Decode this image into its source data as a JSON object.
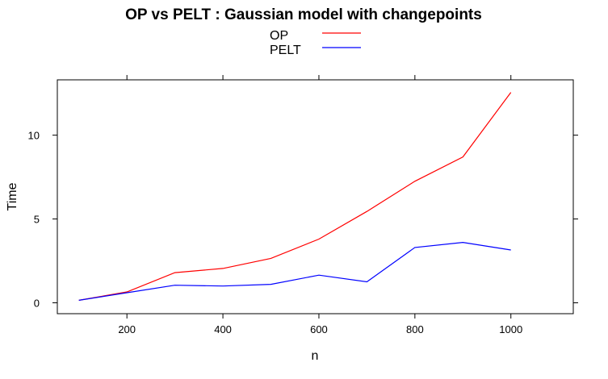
{
  "chart_data": {
    "type": "line",
    "title": "OP vs PELT : Gaussian model with changepoints",
    "xlabel": "n",
    "ylabel": "Time",
    "x": [
      100,
      200,
      300,
      400,
      500,
      600,
      700,
      800,
      900,
      1000
    ],
    "xlim": [
      55,
      1130
    ],
    "ylim": [
      -0.65,
      13.3
    ],
    "xticks": [
      "200",
      "400",
      "600",
      "800",
      "1000"
    ],
    "yticks": [
      "0",
      "5",
      "10"
    ],
    "grid": false,
    "legend_position": "top",
    "series": [
      {
        "name": "OP",
        "color": "#ff0000",
        "values": [
          0.15,
          0.65,
          1.8,
          2.05,
          2.65,
          3.8,
          5.45,
          7.25,
          8.7,
          12.55
        ]
      },
      {
        "name": "PELT",
        "color": "#0000ff",
        "values": [
          0.15,
          0.6,
          1.05,
          1.0,
          1.1,
          1.65,
          1.25,
          3.3,
          3.6,
          3.15
        ]
      }
    ]
  }
}
